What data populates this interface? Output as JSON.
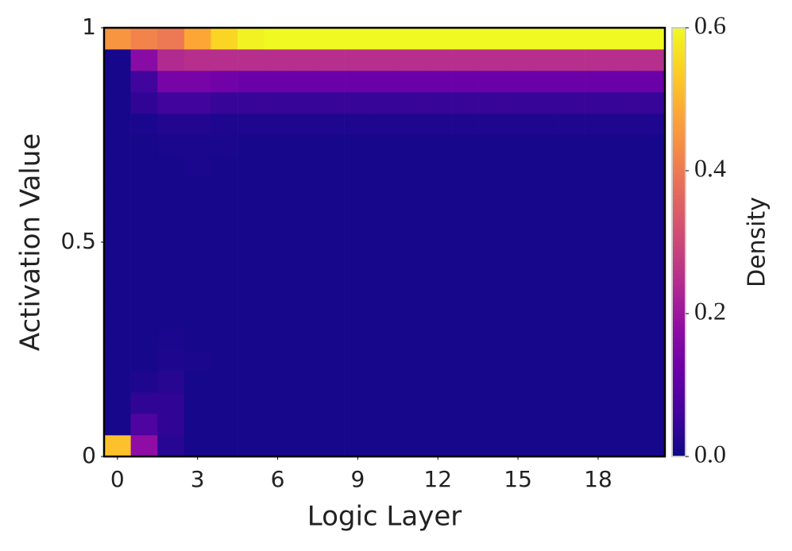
{
  "chart_data": {
    "type": "heatmap",
    "colormap": "plasma",
    "x_label": "Logic Layer",
    "y_label": "Activation Value",
    "colorbar_label": "Density",
    "x": [
      0,
      1,
      2,
      3,
      4,
      5,
      6,
      7,
      8,
      9,
      10,
      11,
      12,
      13,
      14,
      15,
      16,
      17,
      18,
      19,
      20
    ],
    "y_bins": [
      0,
      0.05,
      0.1,
      0.15,
      0.2,
      0.25,
      0.3,
      0.35,
      0.4,
      0.45,
      0.5,
      0.55,
      0.6,
      0.65,
      0.7,
      0.75,
      0.8,
      0.85,
      0.9,
      0.95,
      1
    ],
    "z": [
      [
        0.52,
        0.18,
        0.03,
        0.01,
        0.01,
        0.01,
        0.01,
        0.01,
        0.01,
        0.01,
        0.01,
        0.01,
        0.01,
        0.01,
        0.01,
        0.01,
        0.01,
        0.01,
        0.01,
        0.01,
        0.01
      ],
      [
        0.01,
        0.08,
        0.04,
        0.01,
        0.01,
        0.01,
        0.01,
        0.01,
        0.01,
        0.01,
        0.01,
        0.01,
        0.01,
        0.01,
        0.01,
        0.01,
        0.01,
        0.01,
        0.01,
        0.01,
        0.01
      ],
      [
        0.01,
        0.04,
        0.04,
        0.01,
        0.01,
        0.01,
        0.01,
        0.01,
        0.01,
        0.01,
        0.01,
        0.01,
        0.01,
        0.01,
        0.01,
        0.01,
        0.01,
        0.01,
        0.01,
        0.01,
        0.01
      ],
      [
        0.01,
        0.02,
        0.03,
        0.01,
        0.01,
        0.01,
        0.01,
        0.01,
        0.01,
        0.01,
        0.01,
        0.01,
        0.01,
        0.01,
        0.01,
        0.01,
        0.01,
        0.01,
        0.01,
        0.01,
        0.01
      ],
      [
        0.01,
        0.01,
        0.02,
        0.015,
        0.01,
        0.01,
        0.01,
        0.01,
        0.01,
        0.01,
        0.01,
        0.01,
        0.01,
        0.01,
        0.01,
        0.01,
        0.01,
        0.01,
        0.01,
        0.01,
        0.01
      ],
      [
        0.01,
        0.01,
        0.015,
        0.01,
        0.01,
        0.01,
        0.01,
        0.01,
        0.01,
        0.01,
        0.01,
        0.01,
        0.01,
        0.01,
        0.01,
        0.01,
        0.01,
        0.01,
        0.01,
        0.01,
        0.01
      ],
      [
        0.01,
        0.01,
        0.01,
        0.01,
        0.01,
        0.01,
        0.01,
        0.01,
        0.01,
        0.01,
        0.01,
        0.01,
        0.01,
        0.01,
        0.01,
        0.01,
        0.01,
        0.01,
        0.01,
        0.01,
        0.01
      ],
      [
        0.01,
        0.01,
        0.01,
        0.01,
        0.01,
        0.01,
        0.01,
        0.01,
        0.01,
        0.01,
        0.01,
        0.01,
        0.01,
        0.01,
        0.01,
        0.01,
        0.01,
        0.01,
        0.01,
        0.01,
        0.01
      ],
      [
        0.01,
        0.01,
        0.01,
        0.01,
        0.01,
        0.01,
        0.01,
        0.01,
        0.01,
        0.01,
        0.01,
        0.01,
        0.01,
        0.01,
        0.01,
        0.01,
        0.01,
        0.01,
        0.01,
        0.01,
        0.01
      ],
      [
        0.01,
        0.01,
        0.01,
        0.01,
        0.01,
        0.01,
        0.01,
        0.01,
        0.01,
        0.01,
        0.01,
        0.01,
        0.01,
        0.01,
        0.01,
        0.01,
        0.01,
        0.01,
        0.01,
        0.01,
        0.01
      ],
      [
        0.01,
        0.01,
        0.01,
        0.01,
        0.01,
        0.01,
        0.01,
        0.01,
        0.01,
        0.01,
        0.01,
        0.01,
        0.01,
        0.01,
        0.01,
        0.01,
        0.01,
        0.01,
        0.01,
        0.01,
        0.01
      ],
      [
        0.01,
        0.01,
        0.01,
        0.01,
        0.01,
        0.01,
        0.01,
        0.01,
        0.01,
        0.01,
        0.01,
        0.01,
        0.01,
        0.01,
        0.01,
        0.01,
        0.01,
        0.01,
        0.01,
        0.01,
        0.01
      ],
      [
        0.01,
        0.01,
        0.01,
        0.01,
        0.01,
        0.01,
        0.01,
        0.01,
        0.01,
        0.01,
        0.01,
        0.01,
        0.01,
        0.01,
        0.01,
        0.01,
        0.01,
        0.01,
        0.01,
        0.01,
        0.01
      ],
      [
        0.01,
        0.01,
        0.01,
        0.015,
        0.01,
        0.01,
        0.01,
        0.01,
        0.01,
        0.01,
        0.01,
        0.01,
        0.01,
        0.01,
        0.01,
        0.01,
        0.01,
        0.01,
        0.01,
        0.01,
        0.01
      ],
      [
        0.01,
        0.01,
        0.015,
        0.015,
        0.015,
        0.01,
        0.01,
        0.01,
        0.01,
        0.01,
        0.01,
        0.01,
        0.01,
        0.01,
        0.01,
        0.01,
        0.01,
        0.01,
        0.01,
        0.01,
        0.01
      ],
      [
        0.01,
        0.015,
        0.025,
        0.025,
        0.02,
        0.02,
        0.02,
        0.02,
        0.02,
        0.02,
        0.02,
        0.02,
        0.02,
        0.02,
        0.02,
        0.02,
        0.02,
        0.02,
        0.02,
        0.02,
        0.02
      ],
      [
        0.01,
        0.04,
        0.06,
        0.06,
        0.05,
        0.05,
        0.05,
        0.05,
        0.05,
        0.05,
        0.05,
        0.05,
        0.05,
        0.05,
        0.05,
        0.05,
        0.05,
        0.05,
        0.05,
        0.05,
        0.05
      ],
      [
        0.01,
        0.06,
        0.14,
        0.14,
        0.13,
        0.12,
        0.12,
        0.12,
        0.12,
        0.12,
        0.12,
        0.12,
        0.12,
        0.12,
        0.12,
        0.12,
        0.12,
        0.12,
        0.12,
        0.12,
        0.12
      ],
      [
        0.01,
        0.17,
        0.24,
        0.25,
        0.25,
        0.25,
        0.25,
        0.25,
        0.25,
        0.25,
        0.25,
        0.25,
        0.25,
        0.25,
        0.25,
        0.25,
        0.25,
        0.25,
        0.25,
        0.25,
        0.25
      ],
      [
        0.45,
        0.42,
        0.4,
        0.48,
        0.55,
        0.59,
        0.6,
        0.6,
        0.6,
        0.6,
        0.6,
        0.6,
        0.6,
        0.6,
        0.6,
        0.6,
        0.6,
        0.6,
        0.6,
        0.6,
        0.6
      ]
    ],
    "xlim": [
      -0.5,
      20.5
    ],
    "xticks": [
      0,
      3,
      6,
      9,
      12,
      15,
      18
    ],
    "ylim": [
      0,
      1
    ],
    "yticks": [
      0,
      0.5,
      1
    ],
    "zlim": [
      0,
      0.6
    ],
    "zticks": [
      {
        "value": 0,
        "label": "0.0"
      },
      0.2,
      0.4,
      0.6
    ]
  }
}
